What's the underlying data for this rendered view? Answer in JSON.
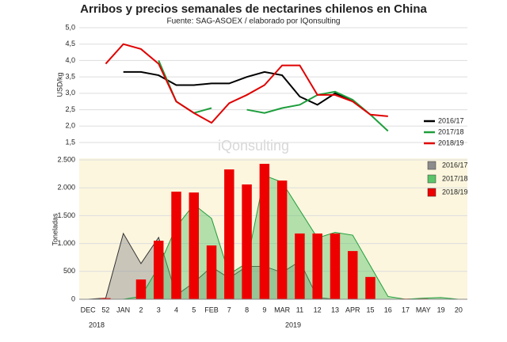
{
  "chart_data": [
    {
      "type": "line",
      "title": "Arribos y precios semanales de nectarines chilenos en China",
      "subtitle": "Fuente: SAG-ASOEX / elaborado por IQonsulting",
      "watermark": "iQonsulting",
      "y_label": "USD/kg",
      "ylim": [
        1.5,
        5.0
      ],
      "yticks": [
        {
          "value": 1.5,
          "label": "1,5"
        },
        {
          "value": 2.0,
          "label": "2,0"
        },
        {
          "value": 2.5,
          "label": "2,5"
        },
        {
          "value": 3.0,
          "label": "3,0"
        },
        {
          "value": 3.5,
          "label": "3,5"
        },
        {
          "value": 4.0,
          "label": "4,0"
        },
        {
          "value": 4.5,
          "label": "4,5"
        },
        {
          "value": 5.0,
          "label": "5,0"
        }
      ],
      "grid": true,
      "legend": "right",
      "series": [
        {
          "name": "2016/17",
          "color": "#000000",
          "values": [
            null,
            null,
            3.65,
            3.65,
            3.55,
            3.25,
            3.25,
            3.3,
            3.3,
            3.5,
            3.65,
            3.55,
            2.9,
            2.65,
            3.0,
            2.8,
            null,
            null,
            null,
            null,
            null,
            null
          ]
        },
        {
          "name": "2017/18",
          "color": "#1e9e3c",
          "values": [
            null,
            null,
            null,
            null,
            4.0,
            2.75,
            2.4,
            2.55,
            null,
            2.5,
            2.4,
            2.55,
            2.65,
            2.95,
            3.05,
            2.8,
            2.35,
            1.85,
            null,
            null,
            null,
            null
          ]
        },
        {
          "name": "2018/19",
          "color": "#e00000",
          "values": [
            null,
            3.9,
            4.5,
            4.35,
            3.9,
            2.75,
            2.4,
            2.1,
            2.7,
            2.95,
            3.25,
            3.85,
            3.85,
            2.95,
            2.95,
            2.75,
            2.35,
            2.3,
            null,
            null,
            null,
            null
          ]
        }
      ]
    },
    {
      "type": "combo",
      "y_label": "Toneladas",
      "categories": [
        "DEC",
        "52",
        "JAN",
        "2",
        "3",
        "4",
        "5",
        "FEB",
        "7",
        "8",
        "9",
        "MAR",
        "11",
        "12",
        "13",
        "APR",
        "15",
        "16",
        "17",
        "MAY",
        "19",
        "20"
      ],
      "year_labels": [
        "2018",
        "2019"
      ],
      "ylim": [
        0,
        2500
      ],
      "yticks": [
        0,
        500,
        {
          "value": 1000,
          "label": "1.000"
        },
        {
          "value": 1500,
          "label": "1.500"
        },
        {
          "value": 2000,
          "label": "2.000"
        },
        {
          "value": 2500,
          "label": "2.500"
        }
      ],
      "grid": true,
      "legend": "top-right",
      "series": [
        {
          "name": "2016/17",
          "kind": "area",
          "color": "#8c8c8c",
          "values": [
            0,
            20,
            1180,
            640,
            1110,
            70,
            300,
            580,
            380,
            590,
            590,
            480,
            680,
            30,
            0,
            0,
            0,
            0,
            0,
            0,
            0,
            0
          ]
        },
        {
          "name": "2017/18",
          "kind": "area",
          "color": "#5cc46a",
          "values": [
            0,
            0,
            0,
            50,
            580,
            1300,
            1700,
            1450,
            450,
            650,
            2220,
            2100,
            1600,
            1100,
            1200,
            1150,
            600,
            50,
            0,
            20,
            30,
            0
          ]
        },
        {
          "name": "2018/19",
          "kind": "bar",
          "color": "#ee0000",
          "values": [
            0,
            20,
            0,
            355,
            1050,
            1930,
            1915,
            965,
            2330,
            2060,
            2430,
            2130,
            1180,
            1180,
            1180,
            865,
            400,
            0,
            10,
            10,
            0,
            0
          ]
        }
      ]
    }
  ]
}
